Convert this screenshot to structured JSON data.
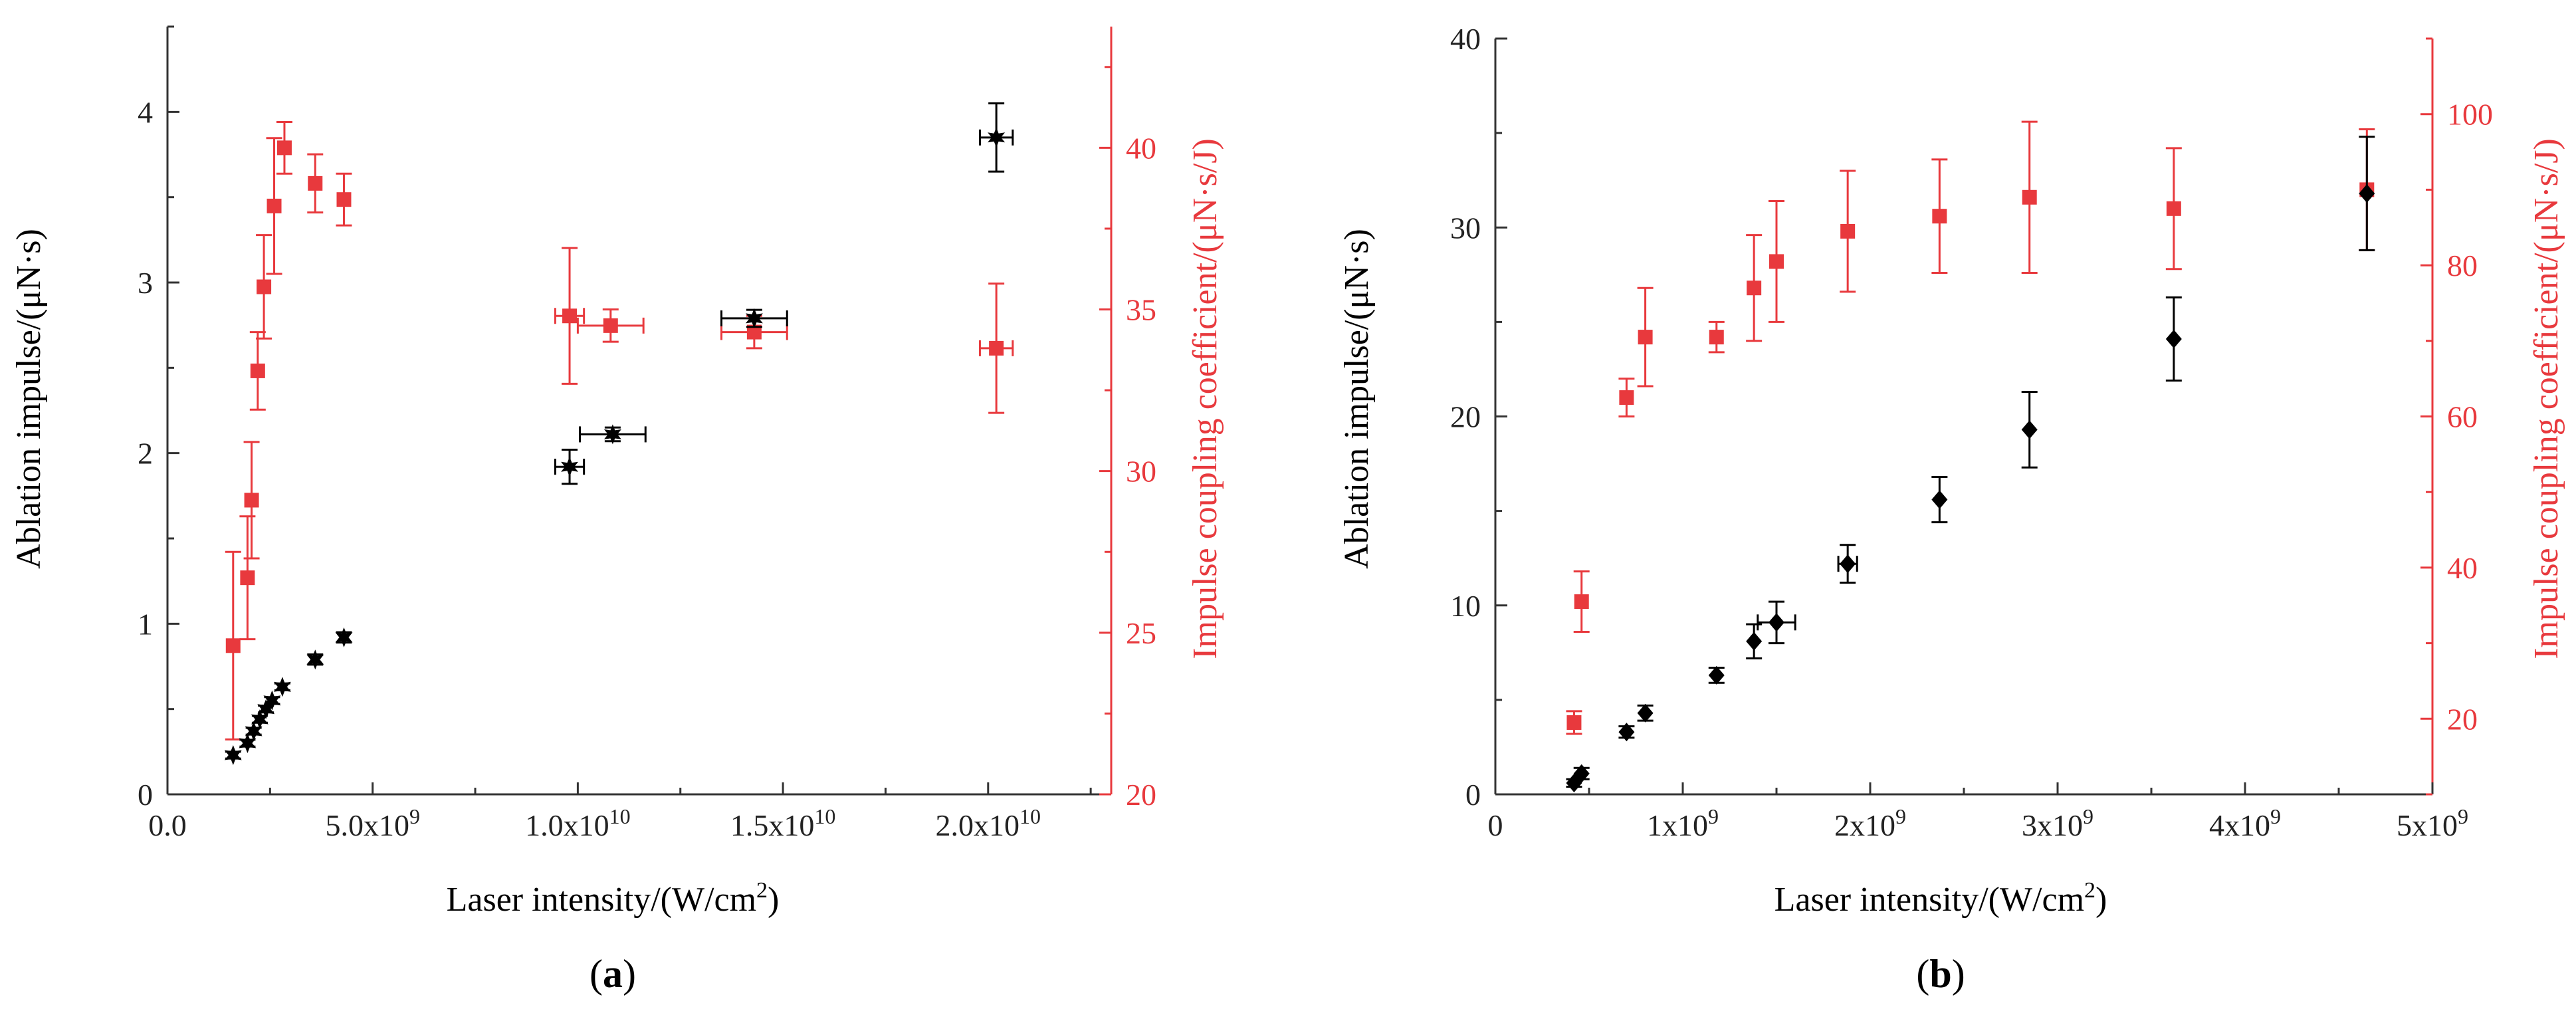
{
  "chart_data": [
    {
      "type": "scatter",
      "panel_label": "(a)",
      "xlabel": "Laser intensity/(W/cm",
      "xlabel_sup": "2",
      "xlabel_tail": ")",
      "ylabel": "Ablation impulse/(μN·s)",
      "y2label": "Impulse coupling coefficient/(μN·s/J)",
      "xlim": [
        0,
        23000000000.0
      ],
      "ylim": [
        0,
        4.5
      ],
      "y2lim": [
        20,
        43.75
      ],
      "xticks": [
        {
          "v": 0,
          "label": "0.0"
        },
        {
          "v": 5000000000.0,
          "label": "5.0x10",
          "exp": "9"
        },
        {
          "v": 10000000000.0,
          "label": "1.0x10",
          "exp": "10"
        },
        {
          "v": 15000000000.0,
          "label": "1.5x10",
          "exp": "10"
        },
        {
          "v": 20000000000.0,
          "label": "2.0x10",
          "exp": "10"
        }
      ],
      "yticks": [
        {
          "v": 0,
          "label": "0"
        },
        {
          "v": 1,
          "label": "1"
        },
        {
          "v": 2,
          "label": "2"
        },
        {
          "v": 3,
          "label": "3"
        },
        {
          "v": 4,
          "label": "4"
        }
      ],
      "y2ticks": [
        {
          "v": 20,
          "label": "20"
        },
        {
          "v": 25,
          "label": "25"
        },
        {
          "v": 30,
          "label": "30"
        },
        {
          "v": 35,
          "label": "35"
        },
        {
          "v": 40,
          "label": "40"
        }
      ],
      "series": [
        {
          "name": "Ablation impulse",
          "axis": "left",
          "color": "#000000",
          "marker": "star",
          "points": [
            {
              "x": 1600000000.0,
              "y": 0.23,
              "yerr": 0.02,
              "xerr": 0
            },
            {
              "x": 1950000000.0,
              "y": 0.3,
              "yerr": 0.02,
              "xerr": 0
            },
            {
              "x": 2100000000.0,
              "y": 0.37,
              "yerr": 0.02,
              "xerr": 0
            },
            {
              "x": 2250000000.0,
              "y": 0.44,
              "yerr": 0.02,
              "xerr": 0
            },
            {
              "x": 2400000000.0,
              "y": 0.5,
              "yerr": 0.02,
              "xerr": 0
            },
            {
              "x": 2550000000.0,
              "y": 0.55,
              "yerr": 0.02,
              "xerr": 0
            },
            {
              "x": 2800000000.0,
              "y": 0.63,
              "yerr": 0.02,
              "xerr": 0
            },
            {
              "x": 3600000000.0,
              "y": 0.79,
              "yerr": 0.03,
              "xerr": 0
            },
            {
              "x": 4300000000.0,
              "y": 0.92,
              "yerr": 0.03,
              "xerr": 0
            },
            {
              "x": 9800000000.0,
              "y": 1.92,
              "yerr": 0.1,
              "xerr": 350000000.0
            },
            {
              "x": 10850000000.0,
              "y": 2.11,
              "yerr": 0.04,
              "xerr": 800000000.0
            },
            {
              "x": 14300000000.0,
              "y": 2.79,
              "yerr": 0.05,
              "xerr": 800000000.0
            },
            {
              "x": 20200000000.0,
              "y": 3.85,
              "yerr": 0.2,
              "xerr": 400000000.0
            }
          ]
        },
        {
          "name": "Impulse coupling coefficient",
          "axis": "right",
          "color": "#e8393d",
          "marker": "square",
          "points": [
            {
              "x": 1600000000.0,
              "y": 24.6,
              "yerr": 2.9,
              "xerr": 0
            },
            {
              "x": 1950000000.0,
              "y": 26.7,
              "yerr": 1.9,
              "xerr": 0
            },
            {
              "x": 2050000000.0,
              "y": 29.1,
              "yerr": 1.8,
              "xerr": 0
            },
            {
              "x": 2200000000.0,
              "y": 33.1,
              "yerr": 1.2,
              "xerr": 0
            },
            {
              "x": 2350000000.0,
              "y": 35.7,
              "yerr": 1.6,
              "xerr": 0
            },
            {
              "x": 2600000000.0,
              "y": 38.2,
              "yerr": 2.1,
              "xerr": 0
            },
            {
              "x": 2850000000.0,
              "y": 40.0,
              "yerr": 0.8,
              "xerr": 0
            },
            {
              "x": 3600000000.0,
              "y": 38.9,
              "yerr": 0.9,
              "xerr": 0
            },
            {
              "x": 4300000000.0,
              "y": 38.4,
              "yerr": 0.8,
              "xerr": 0
            },
            {
              "x": 9800000000.0,
              "y": 34.8,
              "yerr": 2.1,
              "xerr": 350000000.0
            },
            {
              "x": 10800000000.0,
              "y": 34.5,
              "yerr": 0.5,
              "xerr": 800000000.0
            },
            {
              "x": 14300000000.0,
              "y": 34.3,
              "yerr": 0.5,
              "xerr": 800000000.0
            },
            {
              "x": 20200000000.0,
              "y": 33.8,
              "yerr": 2.0,
              "xerr": 400000000.0
            }
          ]
        }
      ]
    },
    {
      "type": "scatter",
      "panel_label": "(b)",
      "xlabel": "Laser intensity/(W/cm",
      "xlabel_sup": "2",
      "xlabel_tail": ")",
      "ylabel": "Ablation impulse/(μN·s)",
      "y2label": "Impulse coupling coefficient/(μN·s/J)",
      "xlim": [
        0,
        5000000000.0
      ],
      "ylim": [
        0,
        40
      ],
      "y2lim": [
        10,
        110
      ],
      "xticks": [
        {
          "v": 0,
          "label": "0"
        },
        {
          "v": 1000000000.0,
          "label": "1x10",
          "exp": "9"
        },
        {
          "v": 2000000000.0,
          "label": "2x10",
          "exp": "9"
        },
        {
          "v": 3000000000.0,
          "label": "3x10",
          "exp": "9"
        },
        {
          "v": 4000000000.0,
          "label": "4x10",
          "exp": "9"
        },
        {
          "v": 5000000000.0,
          "label": "5x10",
          "exp": "9"
        }
      ],
      "yticks": [
        {
          "v": 0,
          "label": "0"
        },
        {
          "v": 10,
          "label": "10"
        },
        {
          "v": 20,
          "label": "20"
        },
        {
          "v": 30,
          "label": "30"
        },
        {
          "v": 40,
          "label": "40"
        }
      ],
      "y2ticks": [
        {
          "v": 20,
          "label": "20"
        },
        {
          "v": 40,
          "label": "40"
        },
        {
          "v": 60,
          "label": "60"
        },
        {
          "v": 80,
          "label": "80"
        },
        {
          "v": 100,
          "label": "100"
        }
      ],
      "series": [
        {
          "name": "Ablation impulse",
          "axis": "left",
          "color": "#000000",
          "marker": "diamond",
          "points": [
            {
              "x": 420000000.0,
              "y": 0.6,
              "yerr": 0.2,
              "xerr": 0
            },
            {
              "x": 460000000.0,
              "y": 1.1,
              "yerr": 0.3,
              "xerr": 0
            },
            {
              "x": 700000000.0,
              "y": 3.3,
              "yerr": 0.3,
              "xerr": 0
            },
            {
              "x": 800000000.0,
              "y": 4.3,
              "yerr": 0.4,
              "xerr": 0
            },
            {
              "x": 1180000000.0,
              "y": 6.3,
              "yerr": 0.4,
              "xerr": 0
            },
            {
              "x": 1380000000.0,
              "y": 8.1,
              "yerr": 0.9,
              "xerr": 0
            },
            {
              "x": 1500000000.0,
              "y": 9.1,
              "yerr": 1.1,
              "xerr": 100000000.0
            },
            {
              "x": 1880000000.0,
              "y": 12.2,
              "yerr": 1.0,
              "xerr": 50000000.0
            },
            {
              "x": 2370000000.0,
              "y": 15.6,
              "yerr": 1.2,
              "xerr": 0
            },
            {
              "x": 2850000000.0,
              "y": 19.3,
              "yerr": 2.0,
              "xerr": 0
            },
            {
              "x": 3620000000.0,
              "y": 24.1,
              "yerr": 2.2,
              "xerr": 0
            },
            {
              "x": 4650000000.0,
              "y": 31.8,
              "yerr": 3.0,
              "xerr": 0
            }
          ]
        },
        {
          "name": "Impulse coupling coefficient",
          "axis": "right",
          "color": "#e8393d",
          "marker": "square",
          "points": [
            {
              "x": 420000000.0,
              "y": 19.5,
              "yerr": 1.5,
              "xerr": 0
            },
            {
              "x": 460000000.0,
              "y": 35.5,
              "yerr": 4.0,
              "xerr": 0
            },
            {
              "x": 700000000.0,
              "y": 62.5,
              "yerr": 2.5,
              "xerr": 0
            },
            {
              "x": 800000000.0,
              "y": 70.5,
              "yerr": 6.5,
              "xerr": 0
            },
            {
              "x": 1180000000.0,
              "y": 70.5,
              "yerr": 2.0,
              "xerr": 0
            },
            {
              "x": 1380000000.0,
              "y": 77.0,
              "yerr": 7.0,
              "xerr": 0
            },
            {
              "x": 1500000000.0,
              "y": 80.5,
              "yerr": 8.0,
              "xerr": 0
            },
            {
              "x": 1880000000.0,
              "y": 84.5,
              "yerr": 8.0,
              "xerr": 0
            },
            {
              "x": 2370000000.0,
              "y": 86.5,
              "yerr": 7.5,
              "xerr": 0
            },
            {
              "x": 2850000000.0,
              "y": 89.0,
              "yerr": 10.0,
              "xerr": 0
            },
            {
              "x": 3620000000.0,
              "y": 87.5,
              "yerr": 8.0,
              "xerr": 0
            },
            {
              "x": 4650000000.0,
              "y": 90.0,
              "yerr": 8.0,
              "xerr": 0
            }
          ]
        }
      ]
    }
  ]
}
